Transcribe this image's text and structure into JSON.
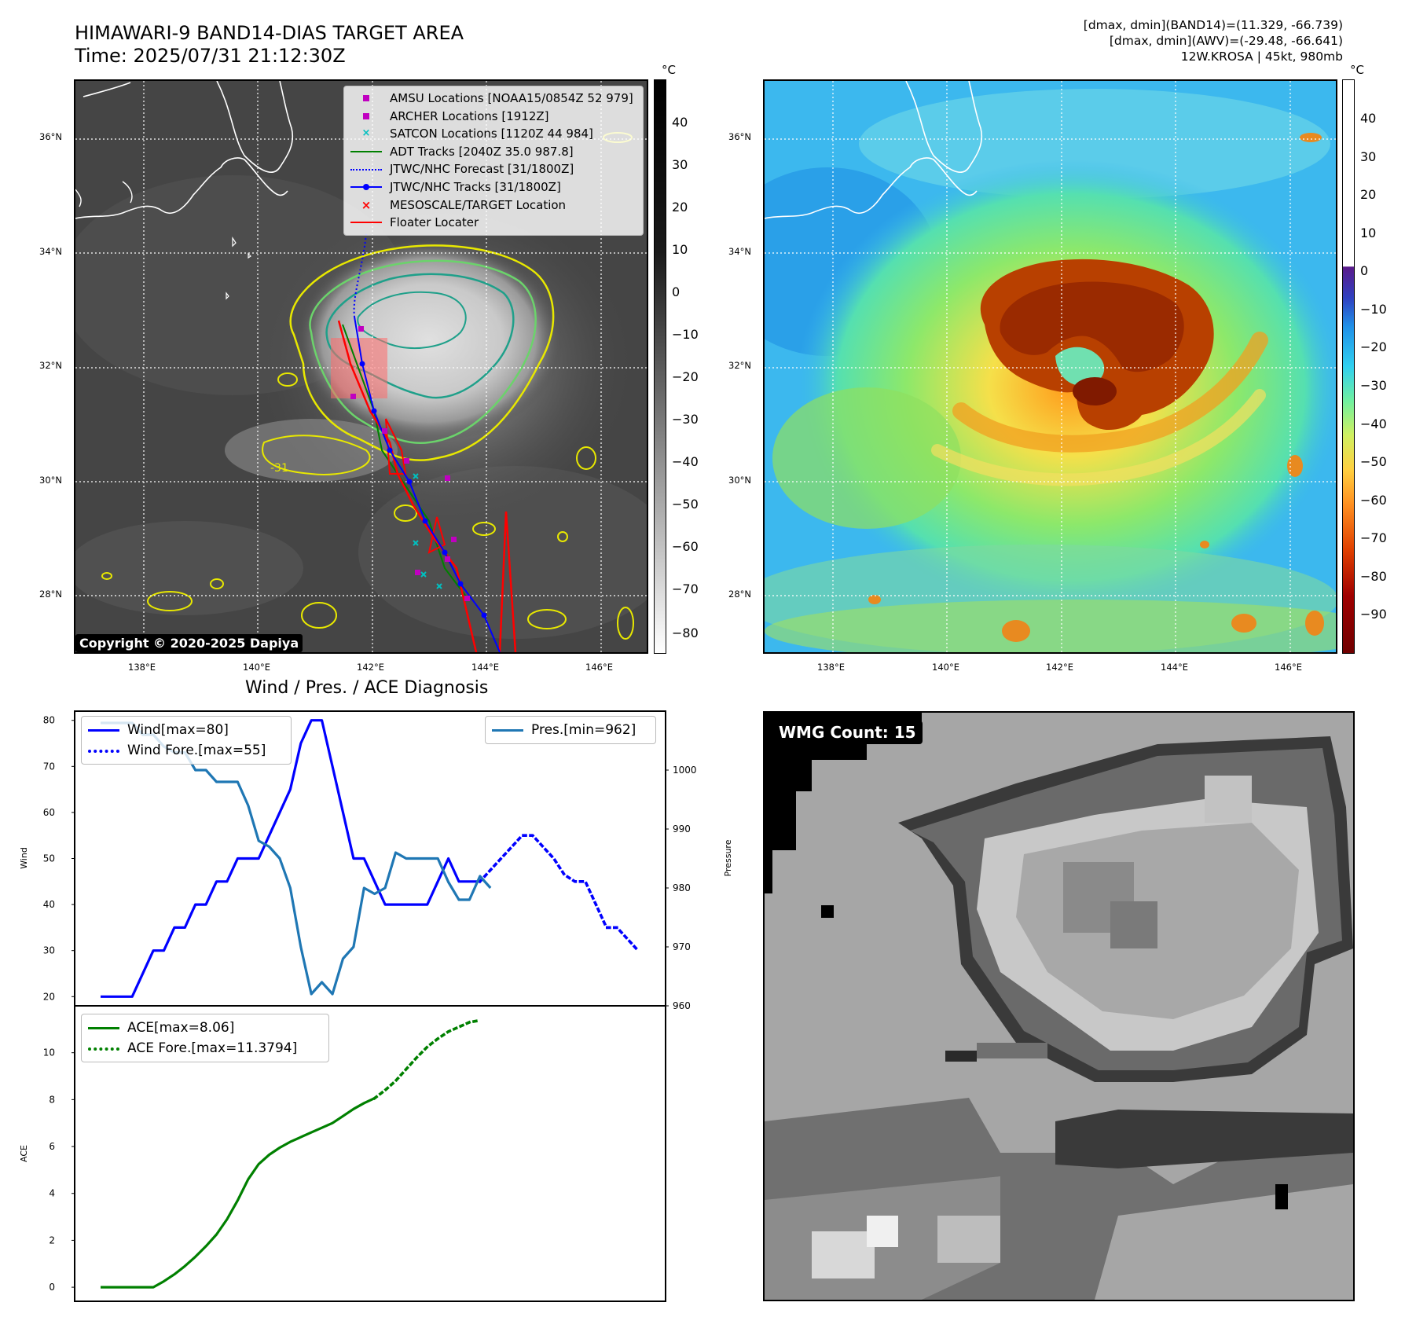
{
  "header": {
    "title_line1": "HIMAWARI-9 BAND14-DIAS TARGET AREA",
    "title_line2": "Time: 2025/07/31 21:12:30Z",
    "info_line1": "[dmax, dmin](BAND14)=(11.329, -66.739)",
    "info_line2": "[dmax, dmin](AWV)=(-29.48, -66.641)",
    "info_line3": "12W.KROSA | 45kt, 980mb"
  },
  "map": {
    "lat_labels": [
      "36°N",
      "34°N",
      "32°N",
      "30°N",
      "28°N"
    ],
    "lon_labels": [
      "138°E",
      "140°E",
      "142°E",
      "144°E",
      "146°E"
    ],
    "contour_label": "-31",
    "copyright": "Copyright © 2020-2025 Dapiya",
    "legend": [
      {
        "label": "AMSU Locations [NOAA15/0854Z 52 979]",
        "symbol": "square",
        "color": "#c000c0"
      },
      {
        "label": "ARCHER Locations [1912Z]",
        "symbol": "square",
        "color": "#c000c0"
      },
      {
        "label": "SATCON Locations [1120Z 44 984]",
        "symbol": "x",
        "color": "#00c0c0"
      },
      {
        "label": "ADT Tracks [2040Z 35.0 987.8]",
        "symbol": "line",
        "color": "#008000"
      },
      {
        "label": "JTWC/NHC Forecast [31/1800Z]",
        "symbol": "dotted",
        "color": "#0000ff"
      },
      {
        "label": "JTWC/NHC Tracks [31/1800Z]",
        "symbol": "line-dot",
        "color": "#0000ff"
      },
      {
        "label": "MESOSCALE/TARGET Location",
        "symbol": "x",
        "color": "#ff0000"
      },
      {
        "label": "Floater Locater",
        "symbol": "line",
        "color": "#ff0000"
      }
    ]
  },
  "colorbar_gray": {
    "unit": "°C",
    "ticks": [
      "40",
      "30",
      "20",
      "10",
      "0",
      "−10",
      "−20",
      "−30",
      "−40",
      "−50",
      "−60",
      "−70",
      "−80"
    ]
  },
  "colorbar_color": {
    "unit": "°C",
    "ticks": [
      "40",
      "30",
      "20",
      "10",
      "0",
      "−10",
      "−20",
      "−30",
      "−40",
      "−50",
      "−60",
      "−70",
      "−80",
      "−90"
    ]
  },
  "wmg": {
    "label": "WMG Count: 15"
  },
  "chart_data": [
    {
      "type": "line",
      "title": "Wind / Pres. / ACE Diagnosis",
      "ylabel": "Wind",
      "ylabel_right": "Pressure",
      "ylim": [
        18,
        82
      ],
      "ylim_right": [
        960,
        1010
      ],
      "yticks": [
        20,
        30,
        40,
        50,
        60,
        70,
        80
      ],
      "yticks_right": [
        960,
        970,
        980,
        990,
        1000
      ],
      "series": [
        {
          "name": "Wind[max=80]",
          "axis": "left",
          "color": "#0000ff",
          "style": "solid",
          "values": [
            [
              0,
              20
            ],
            [
              3,
              20
            ],
            [
              5,
              30
            ],
            [
              6,
              30
            ],
            [
              7,
              35
            ],
            [
              8,
              35
            ],
            [
              9,
              40
            ],
            [
              10,
              40
            ],
            [
              11,
              45
            ],
            [
              12,
              45
            ],
            [
              13,
              50
            ],
            [
              14,
              50
            ],
            [
              15,
              50
            ],
            [
              16,
              55
            ],
            [
              17,
              60
            ],
            [
              18,
              65
            ],
            [
              19,
              75
            ],
            [
              20,
              80
            ],
            [
              21,
              80
            ],
            [
              22,
              70
            ],
            [
              23,
              60
            ],
            [
              24,
              50
            ],
            [
              25,
              50
            ],
            [
              26,
              45
            ],
            [
              27,
              40
            ],
            [
              28,
              40
            ],
            [
              29,
              40
            ],
            [
              30,
              40
            ],
            [
              31,
              40
            ],
            [
              32,
              45
            ],
            [
              33,
              50
            ],
            [
              34,
              45
            ],
            [
              35,
              45
            ],
            [
              36,
              45
            ]
          ]
        },
        {
          "name": "Wind Fore.[max=55]",
          "axis": "left",
          "color": "#0000ff",
          "style": "dotted",
          "values": [
            [
              36,
              45
            ],
            [
              37,
              47.5
            ],
            [
              38,
              50
            ],
            [
              39,
              52.5
            ],
            [
              40,
              55
            ],
            [
              41,
              55
            ],
            [
              42,
              52.5
            ],
            [
              43,
              50
            ],
            [
              44,
              46.5
            ],
            [
              45,
              45
            ],
            [
              46,
              45
            ],
            [
              47,
              40
            ],
            [
              48,
              35
            ],
            [
              49,
              35
            ],
            [
              50,
              32.5
            ],
            [
              51,
              30
            ]
          ]
        },
        {
          "name": "Pres.[min=962]",
          "axis": "right",
          "color": "#1f77b4",
          "style": "solid",
          "values": [
            [
              0,
              1008
            ],
            [
              3,
              1008
            ],
            [
              4,
              1006
            ],
            [
              5,
              1006
            ],
            [
              6,
              1004
            ],
            [
              7,
              1003
            ],
            [
              8,
              1003
            ],
            [
              9,
              1000
            ],
            [
              10,
              1000
            ],
            [
              11,
              998
            ],
            [
              12,
              998
            ],
            [
              13,
              998
            ],
            [
              14,
              994
            ],
            [
              15,
              988
            ],
            [
              16,
              987
            ],
            [
              17,
              985
            ],
            [
              18,
              980
            ],
            [
              19,
              970
            ],
            [
              20,
              962
            ],
            [
              21,
              964
            ],
            [
              22,
              962
            ],
            [
              23,
              968
            ],
            [
              24,
              970
            ],
            [
              25,
              980
            ],
            [
              26,
              979
            ],
            [
              27,
              980
            ],
            [
              28,
              986
            ],
            [
              29,
              985
            ],
            [
              30,
              985
            ],
            [
              31,
              985
            ],
            [
              32,
              985
            ],
            [
              33,
              981
            ],
            [
              34,
              978
            ],
            [
              35,
              978
            ],
            [
              36,
              982
            ],
            [
              37,
              980
            ]
          ]
        }
      ]
    },
    {
      "type": "line",
      "ylabel": "ACE",
      "ylim": [
        -0.6,
        12
      ],
      "yticks": [
        0,
        2,
        4,
        6,
        8,
        10
      ],
      "series": [
        {
          "name": "ACE[max=8.06]",
          "color": "#008000",
          "style": "solid",
          "values": [
            [
              0,
              0
            ],
            [
              2,
              0
            ],
            [
              4,
              0
            ],
            [
              5,
              0
            ],
            [
              6,
              0.25
            ],
            [
              7,
              0.55
            ],
            [
              8,
              0.9
            ],
            [
              9,
              1.3
            ],
            [
              10,
              1.75
            ],
            [
              11,
              2.25
            ],
            [
              12,
              2.9
            ],
            [
              13,
              3.7
            ],
            [
              14,
              4.6
            ],
            [
              15,
              5.25
            ],
            [
              16,
              5.65
            ],
            [
              17,
              5.95
            ],
            [
              18,
              6.2
            ],
            [
              19,
              6.4
            ],
            [
              20,
              6.6
            ],
            [
              21,
              6.8
            ],
            [
              22,
              7.0
            ],
            [
              23,
              7.3
            ],
            [
              24,
              7.6
            ],
            [
              25,
              7.85
            ],
            [
              26,
              8.06
            ]
          ]
        },
        {
          "name": "ACE Fore.[max=11.3794]",
          "color": "#008000",
          "style": "dotted",
          "values": [
            [
              26,
              8.06
            ],
            [
              27,
              8.4
            ],
            [
              28,
              8.8
            ],
            [
              29,
              9.3
            ],
            [
              30,
              9.8
            ],
            [
              31,
              10.25
            ],
            [
              32,
              10.6
            ],
            [
              33,
              10.9
            ],
            [
              34,
              11.1
            ],
            [
              35,
              11.3
            ],
            [
              36,
              11.38
            ]
          ]
        }
      ]
    }
  ]
}
